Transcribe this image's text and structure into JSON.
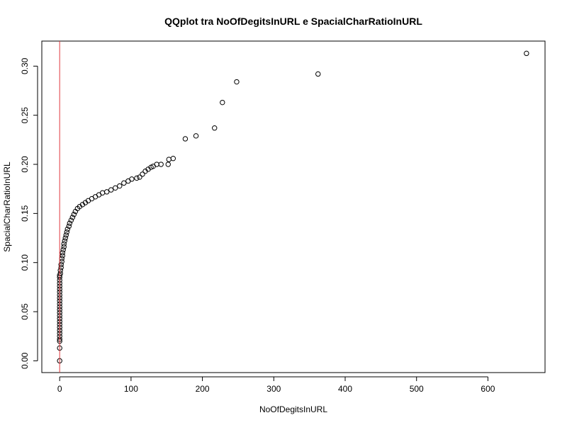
{
  "chart_data": {
    "type": "scatter",
    "title": "QQplot tra NoOfDegitsInURL e SpacialCharRatioInURL",
    "xlabel": "NoOfDegitsInURL",
    "ylabel": "SpacialCharRatioInURL",
    "xlim": [
      -25,
      680
    ],
    "ylim": [
      -0.012,
      0.3255
    ],
    "xticks": [
      0,
      100,
      200,
      300,
      400,
      500,
      600
    ],
    "yticks": [
      0.0,
      0.05,
      0.1,
      0.15,
      0.2,
      0.25,
      0.3
    ],
    "xtick_labels": [
      "0",
      "100",
      "200",
      "300",
      "400",
      "500",
      "600"
    ],
    "ytick_labels": [
      "0.00",
      "0.05",
      "0.10",
      "0.15",
      "0.20",
      "0.25",
      "0.30"
    ],
    "reference_line": {
      "orientation": "vertical",
      "x": 0,
      "color": "#e0393e"
    },
    "grid": false,
    "legend": "none",
    "point_style": "open-circle",
    "series": [
      {
        "points": [
          [
            0,
            0.0
          ],
          [
            0,
            0.013
          ],
          [
            0,
            0.02
          ],
          [
            0,
            0.022
          ],
          [
            0,
            0.025
          ],
          [
            0,
            0.028
          ],
          [
            0,
            0.031
          ],
          [
            0,
            0.034
          ],
          [
            0,
            0.037
          ],
          [
            0,
            0.04
          ],
          [
            0,
            0.043
          ],
          [
            0,
            0.046
          ],
          [
            0,
            0.049
          ],
          [
            0,
            0.052
          ],
          [
            0,
            0.055
          ],
          [
            0,
            0.058
          ],
          [
            0,
            0.061
          ],
          [
            0,
            0.064
          ],
          [
            0,
            0.067
          ],
          [
            0,
            0.07
          ],
          [
            0,
            0.073
          ],
          [
            0,
            0.076
          ],
          [
            0,
            0.079
          ],
          [
            0,
            0.082
          ],
          [
            0,
            0.085
          ],
          [
            0,
            0.087
          ],
          [
            1,
            0.089
          ],
          [
            1,
            0.092
          ],
          [
            2,
            0.095
          ],
          [
            2,
            0.098
          ],
          [
            3,
            0.101
          ],
          [
            3,
            0.104
          ],
          [
            4,
            0.107
          ],
          [
            4,
            0.11
          ],
          [
            5,
            0.113
          ],
          [
            6,
            0.116
          ],
          [
            6,
            0.119
          ],
          [
            7,
            0.122
          ],
          [
            8,
            0.125
          ],
          [
            9,
            0.128
          ],
          [
            10,
            0.131
          ],
          [
            11,
            0.134
          ],
          [
            13,
            0.137
          ],
          [
            14,
            0.14
          ],
          [
            16,
            0.143
          ],
          [
            18,
            0.146
          ],
          [
            20,
            0.149
          ],
          [
            22,
            0.152
          ],
          [
            25,
            0.155
          ],
          [
            28,
            0.157
          ],
          [
            32,
            0.159
          ],
          [
            36,
            0.161
          ],
          [
            40,
            0.163
          ],
          [
            45,
            0.165
          ],
          [
            50,
            0.167
          ],
          [
            55,
            0.169
          ],
          [
            60,
            0.171
          ],
          [
            66,
            0.172
          ],
          [
            72,
            0.174
          ],
          [
            78,
            0.176
          ],
          [
            84,
            0.178
          ],
          [
            90,
            0.181
          ],
          [
            96,
            0.183
          ],
          [
            101,
            0.185
          ],
          [
            108,
            0.186
          ],
          [
            112,
            0.187
          ],
          [
            116,
            0.19
          ],
          [
            120,
            0.193
          ],
          [
            124,
            0.195
          ],
          [
            128,
            0.197
          ],
          [
            131,
            0.198
          ],
          [
            136,
            0.2
          ],
          [
            142,
            0.2
          ],
          [
            152,
            0.2
          ],
          [
            153,
            0.205
          ],
          [
            159,
            0.206
          ],
          [
            176,
            0.226
          ],
          [
            191,
            0.229
          ],
          [
            217,
            0.237
          ],
          [
            228,
            0.263
          ],
          [
            248,
            0.284
          ],
          [
            362,
            0.292
          ],
          [
            654,
            0.313
          ]
        ]
      }
    ]
  }
}
